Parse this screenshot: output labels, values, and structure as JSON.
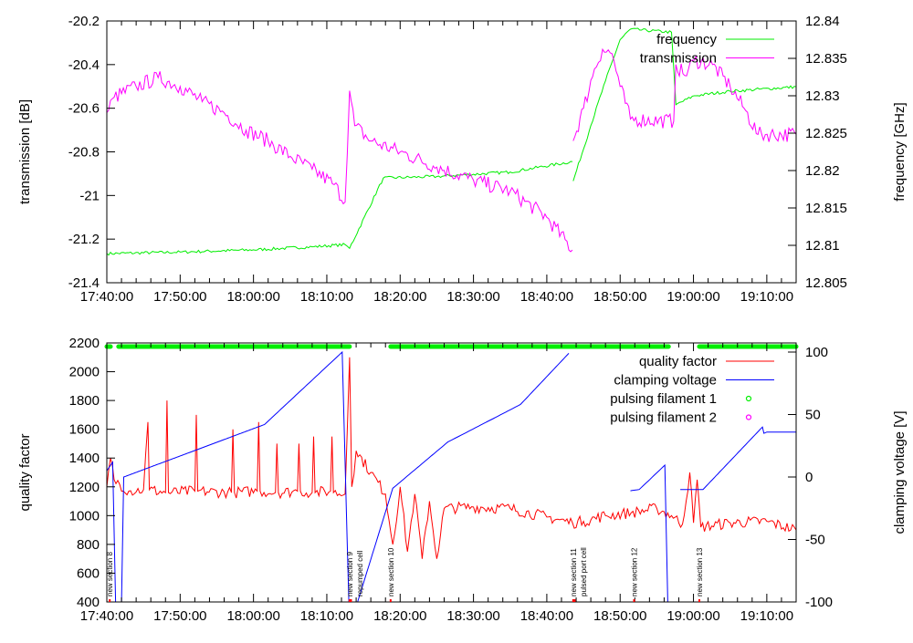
{
  "chart_data": [
    {
      "type": "line",
      "xlabel": "",
      "ylabel": "transmission [dB]",
      "y2label": "frequency [GHz]",
      "xlim_minutes_from_17_40": [
        0,
        94
      ],
      "x_tick_labels": [
        "17:40:00",
        "17:50:00",
        "18:00:00",
        "18:10:00",
        "18:20:00",
        "18:30:00",
        "18:40:00",
        "18:50:00",
        "19:00:00",
        "19:10:00"
      ],
      "ylim": [
        -21.4,
        -20.2
      ],
      "y_ticks": [
        -20.2,
        -20.4,
        -20.6,
        -20.8,
        -21,
        -21.2,
        -21.4
      ],
      "y_tick_labels": [
        "-20.2",
        "-20.4",
        "-20.6",
        "-20.8",
        "-21",
        "-21.2",
        "-21.4"
      ],
      "y2lim": [
        12.805,
        12.84
      ],
      "y2_ticks": [
        12.84,
        12.835,
        12.83,
        12.825,
        12.82,
        12.815,
        12.81,
        12.805
      ],
      "y2_tick_labels": [
        "12.84",
        "12.835",
        "12.83",
        "12.825",
        "12.82",
        "12.815",
        "12.81",
        "12.805"
      ],
      "legend_position": "top-right",
      "series": [
        {
          "name": "frequency",
          "color": "#00ee00",
          "axis": "y2",
          "noise": 0.0002,
          "segments": [
            [
              [
                0,
                12.8089
              ],
              [
                10,
                12.8091
              ],
              [
                20,
                12.8094
              ],
              [
                28,
                12.8098
              ],
              [
                32.5,
                12.8101
              ],
              [
                33.1,
                12.8096
              ],
              [
                37.7,
                12.819
              ],
              [
                45,
                12.8192
              ],
              [
                55,
                12.8198
              ],
              [
                63.5,
                12.8212
              ]
            ],
            [
              [
                63.6,
                12.8186
              ],
              [
                66,
                12.826
              ],
              [
                68,
                12.832
              ],
              [
                70,
                12.8375
              ],
              [
                71.4,
                12.8389
              ],
              [
                77,
                12.8385
              ],
              [
                77.6,
                12.8288
              ],
              [
                80.1,
                12.83
              ],
              [
                85,
                12.8306
              ],
              [
                94,
                12.8312
              ]
            ]
          ]
        },
        {
          "name": "transmission",
          "color": "#ff00ff",
          "axis": "y",
          "noise": 0.035,
          "segments": [
            [
              [
                0,
                -20.62
              ],
              [
                1,
                -20.55
              ],
              [
                4,
                -20.5
              ],
              [
                7,
                -20.46
              ],
              [
                10,
                -20.5
              ],
              [
                13,
                -20.57
              ],
              [
                16,
                -20.62
              ],
              [
                19,
                -20.7
              ],
              [
                22,
                -20.75
              ],
              [
                25,
                -20.82
              ],
              [
                28,
                -20.88
              ],
              [
                31,
                -20.95
              ],
              [
                32.5,
                -21.03
              ],
              [
                33.1,
                -20.52
              ],
              [
                33.8,
                -20.68
              ],
              [
                36,
                -20.75
              ],
              [
                40,
                -20.8
              ],
              [
                45,
                -20.87
              ],
              [
                50,
                -20.93
              ],
              [
                55,
                -20.98
              ],
              [
                60,
                -21.1
              ],
              [
                63.5,
                -21.25
              ]
            ],
            [
              [
                63.6,
                -20.75
              ],
              [
                65,
                -20.6
              ],
              [
                66.5,
                -20.42
              ],
              [
                67.6,
                -20.33
              ],
              [
                68.9,
                -20.35
              ],
              [
                70,
                -20.5
              ],
              [
                71.4,
                -20.65
              ],
              [
                77.3,
                -20.66
              ],
              [
                77.6,
                -20.4
              ],
              [
                78.8,
                -20.45
              ],
              [
                80.1,
                -20.38
              ],
              [
                82.6,
                -20.4
              ],
              [
                85,
                -20.5
              ],
              [
                86.9,
                -20.6
              ],
              [
                88.8,
                -20.72
              ],
              [
                94,
                -20.72
              ]
            ]
          ]
        }
      ]
    },
    {
      "type": "line",
      "xlabel": "",
      "ylabel": "quality factor",
      "y2label": "clamping voltage [V]",
      "xlim_minutes_from_17_40": [
        0,
        94
      ],
      "x_tick_labels": [
        "17:40:00",
        "17:50:00",
        "18:00:00",
        "18:10:00",
        "18:20:00",
        "18:30:00",
        "18:40:00",
        "18:50:00",
        "19:00:00",
        "19:10:00"
      ],
      "ylim": [
        400,
        2200
      ],
      "y_ticks": [
        400,
        600,
        800,
        1000,
        1200,
        1400,
        1600,
        1800,
        2000,
        2200
      ],
      "y_tick_labels": [
        "400",
        "600",
        "800",
        "1000",
        "1200",
        "1400",
        "1600",
        "1800",
        "2000",
        "2200"
      ],
      "y2lim": [
        -100,
        107.3
      ],
      "y2_ticks": [
        100,
        50,
        0,
        -50,
        -100
      ],
      "y2_tick_labels": [
        "100",
        "50",
        "0",
        "-50",
        "-100"
      ],
      "legend_position": "top-right",
      "series": [
        {
          "name": "quality factor",
          "color": "#ff0000",
          "axis": "y",
          "noise": 40,
          "segments": [
            [
              [
                0,
                1200
              ],
              [
                0.5,
                1400
              ],
              [
                1,
                1250
              ],
              [
                3,
                1170
              ],
              [
                5,
                1180
              ],
              [
                5.6,
                1650
              ],
              [
                5.8,
                1180
              ],
              [
                8,
                1160
              ],
              [
                8.2,
                1800
              ],
              [
                8.4,
                1160
              ],
              [
                12,
                1170
              ],
              [
                12.2,
                1700
              ],
              [
                12.4,
                1170
              ],
              [
                17,
                1160
              ],
              [
                17.2,
                1600
              ],
              [
                17.4,
                1160
              ],
              [
                20.5,
                1170
              ],
              [
                20.7,
                1650
              ],
              [
                20.9,
                1170
              ],
              [
                23,
                1160
              ],
              [
                23.2,
                1500
              ],
              [
                23.4,
                1160
              ],
              [
                26,
                1170
              ],
              [
                26.2,
                1500
              ],
              [
                26.4,
                1170
              ],
              [
                28,
                1160
              ],
              [
                28.2,
                1550
              ],
              [
                28.4,
                1160
              ],
              [
                30.5,
                1170
              ],
              [
                30.7,
                1550
              ],
              [
                30.9,
                1160
              ],
              [
                32.5,
                1150
              ],
              [
                33.1,
                2100
              ],
              [
                33.4,
                1200
              ],
              [
                34,
                1450
              ],
              [
                36,
                1300
              ],
              [
                38,
                1150
              ],
              [
                39,
                800
              ],
              [
                40,
                1200
              ],
              [
                41,
                750
              ],
              [
                42,
                1150
              ],
              [
                43,
                700
              ],
              [
                44,
                1100
              ],
              [
                45,
                700
              ],
              [
                46,
                1050
              ],
              [
                50,
                1060
              ],
              [
                55,
                1050
              ],
              [
                60,
                990
              ],
              [
                63.5,
                950
              ],
              [
                65,
                960
              ],
              [
                68,
                1000
              ],
              [
                71.5,
                1020
              ],
              [
                75,
                1050
              ],
              [
                77,
                1000
              ],
              [
                78.5,
                940
              ],
              [
                79.5,
                1300
              ],
              [
                80,
                950
              ],
              [
                80.5,
                1250
              ],
              [
                81,
                920
              ],
              [
                85,
                950
              ],
              [
                90,
                960
              ],
              [
                94,
                900
              ]
            ]
          ]
        },
        {
          "name": "clamping voltage",
          "color": "#0000ff",
          "axis": "y2",
          "noise": 0,
          "segments": [
            [
              [
                0,
                5
              ],
              [
                0.8,
                12
              ],
              [
                1.2,
                -100
              ],
              [
                2,
                -100
              ],
              [
                2.3,
                0
              ],
              [
                21.5,
                42
              ],
              [
                32.1,
                100
              ],
              [
                33,
                -100
              ],
              [
                34.2,
                -100
              ],
              [
                39,
                -9
              ],
              [
                46.5,
                28
              ],
              [
                56.4,
                58
              ],
              [
                63,
                99
              ]
            ],
            [
              [
                71.4,
                -11
              ],
              [
                72.6,
                -10
              ],
              [
                76.1,
                9.5
              ],
              [
                76.5,
                -100
              ]
            ],
            [
              [
                78.2,
                -10
              ],
              [
                81.3,
                -10
              ],
              [
                89.4,
                40
              ],
              [
                89.6,
                35
              ],
              [
                90,
                36
              ],
              [
                94,
                36
              ]
            ]
          ]
        },
        {
          "name": "pulsing filament 1",
          "color": "#00ee00",
          "marker": "circle",
          "on_intervals_minutes": [
            [
              0,
              0.5
            ],
            [
              1.6,
              33.1
            ],
            [
              38.7,
              76.6
            ],
            [
              80.8,
              94
            ]
          ]
        },
        {
          "name": "pulsing filament 2",
          "color": "#ff00ff",
          "marker": "circle",
          "on_intervals_minutes": []
        }
      ],
      "annotations": [
        {
          "x_min": 0.4,
          "text": "new section 8"
        },
        {
          "x_min": 33.1,
          "text": "new section 9"
        },
        {
          "x_min": 33.3,
          "text": "repumped cell"
        },
        {
          "x_min": 38.7,
          "text": "new section 10"
        },
        {
          "x_min": 63.6,
          "text": "new section 11"
        },
        {
          "x_min": 63.8,
          "text": "pulsed port cell"
        },
        {
          "x_min": 71.9,
          "text": "new section 12"
        },
        {
          "x_min": 80.8,
          "text": "new section 13"
        }
      ]
    }
  ]
}
